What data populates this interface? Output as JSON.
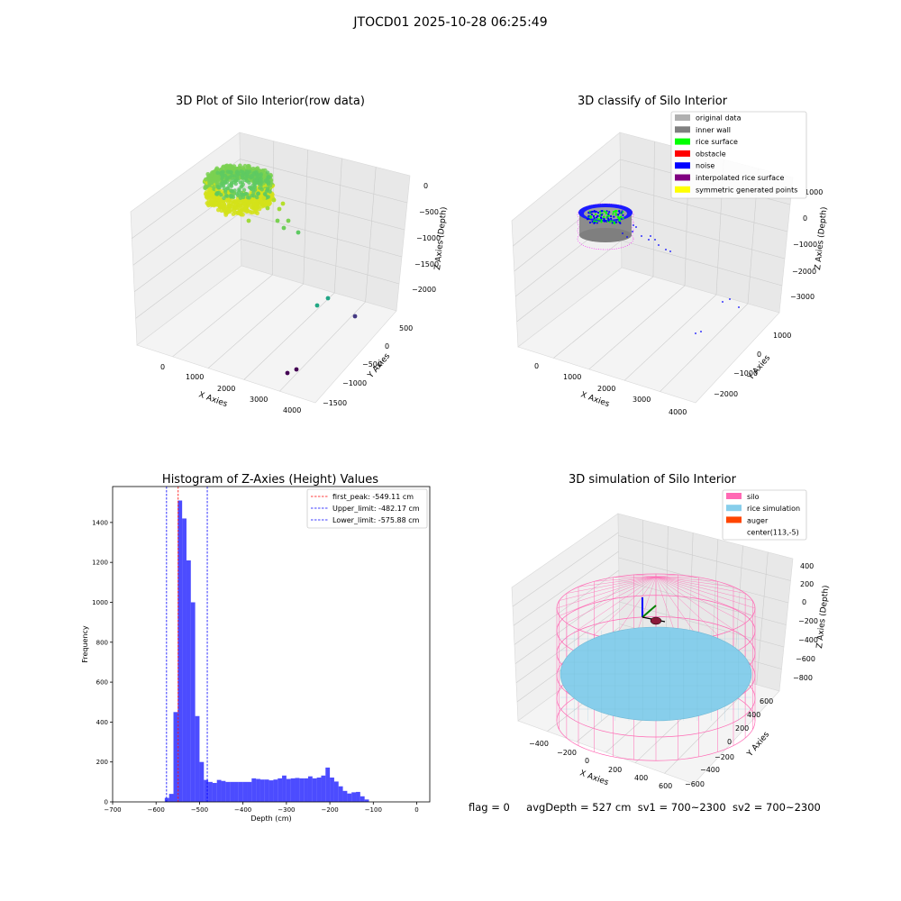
{
  "figure": {
    "suptitle": "JTOCD01 2025-10-28 06:25:49"
  },
  "status": {
    "flag": "flag = 0",
    "avg_depth": "avgDepth = 527 cm",
    "sv1": "sv1 = 700~2300",
    "sv2": "sv2 = 700~2300"
  },
  "chart_data": [
    {
      "type": "scatter3d",
      "title": "3D Plot of Silo Interior(row data)",
      "xlabel": "X Axies",
      "ylabel": "Y Axies",
      "zlabel": "Z Axies (Depth)",
      "x_ticks": [
        "0",
        "1000",
        "2000",
        "3000",
        "4000"
      ],
      "y_ticks": [
        "500",
        "0",
        "−1000",
        "−1500"
      ],
      "y_ticks_full": [
        "500",
        "0",
        "−500",
        "−1000",
        "−1500"
      ],
      "z_ticks": [
        "0",
        "−500",
        "−1000",
        "−1500",
        "−2000"
      ],
      "colormap": "viridis",
      "grid": true
    },
    {
      "type": "scatter3d",
      "title": "3D classify of Silo Interior",
      "xlabel": "X Axies",
      "ylabel": "Y Axies",
      "zlabel": "Z Axies (Depth)",
      "x_ticks": [
        "0",
        "1000",
        "2000",
        "3000",
        "4000"
      ],
      "y_ticks": [
        "1000",
        "0",
        "−1000",
        "−2000"
      ],
      "z_ticks": [
        "1000",
        "0",
        "−1000",
        "−2000",
        "−3000"
      ],
      "legend_position": "top-right",
      "legend": [
        {
          "label": "original data",
          "color": "#b0b0b0"
        },
        {
          "label": "inner wall",
          "color": "#808080"
        },
        {
          "label": "rice surface",
          "color": "#00ff00"
        },
        {
          "label": "obstacle",
          "color": "#ff0000"
        },
        {
          "label": "noise",
          "color": "#0000ff"
        },
        {
          "label": "interpolated rice surface",
          "color": "#800080"
        },
        {
          "label": "symmetric generated points",
          "color": "#ffff00"
        }
      ],
      "grid": true
    },
    {
      "type": "bar",
      "title": "Histogram of Z-Axies (Height) Values",
      "xlabel": "Depth (cm)",
      "ylabel": "Frequency",
      "xlim": [
        -700,
        30
      ],
      "ylim": [
        0,
        1580
      ],
      "x_ticks": [
        -700,
        -600,
        -500,
        -400,
        -300,
        -200,
        -100,
        0
      ],
      "x_tick_labels": [
        "−700",
        "−600",
        "−500",
        "−400",
        "−300",
        "−200",
        "−100",
        "0"
      ],
      "y_ticks": [
        0,
        200,
        400,
        600,
        800,
        1000,
        1200,
        1400
      ],
      "y_tick_labels": [
        "0",
        "200",
        "400",
        "600",
        "800",
        "1000",
        "1200",
        "1400"
      ],
      "bin_width": 10,
      "bin_start": -580,
      "values": [
        20,
        40,
        450,
        1510,
        1420,
        1210,
        1000,
        430,
        200,
        110,
        100,
        95,
        110,
        105,
        100,
        100,
        100,
        100,
        100,
        100,
        118,
        115,
        112,
        112,
        108,
        112,
        118,
        132,
        115,
        118,
        120,
        118,
        118,
        128,
        118,
        122,
        132,
        172,
        122,
        102,
        78,
        55,
        42,
        48,
        50,
        28,
        12
      ],
      "bar_color": "#0000ff",
      "bar_alpha": 0.7,
      "lines": [
        {
          "label": "first_peak: -549.11 cm",
          "x": -549.11,
          "color": "#ff0000"
        },
        {
          "label": "Upper_limit: -482.17 cm",
          "x": -482.17,
          "color": "#0000ff"
        },
        {
          "label": "Lower_limit: -575.88 cm",
          "x": -575.88,
          "color": "#0000ff"
        }
      ],
      "legend_position": "top-right"
    },
    {
      "type": "surface3d",
      "title": "3D simulation of Silo Interior",
      "xlabel": "X Axies",
      "ylabel": "Y Axies",
      "zlabel": "Z Axies (Depth)",
      "x_ticks": [
        "−400",
        "−200",
        "0",
        "200",
        "400",
        "600"
      ],
      "y_ticks": [
        "600",
        "400",
        "200",
        "0",
        "−200",
        "−400",
        "−600"
      ],
      "z_ticks": [
        "400",
        "200",
        "0",
        "−200",
        "−400",
        "−600",
        "−800"
      ],
      "legend_position": "top-right",
      "legend": [
        {
          "label": "silo",
          "color": "#ff69b4"
        },
        {
          "label": "rice simulation",
          "color": "#87ceeb"
        },
        {
          "label": "auger",
          "color": "#ff4500"
        },
        {
          "label": "center(113,-5)",
          "color": ""
        }
      ],
      "grid": true
    }
  ]
}
